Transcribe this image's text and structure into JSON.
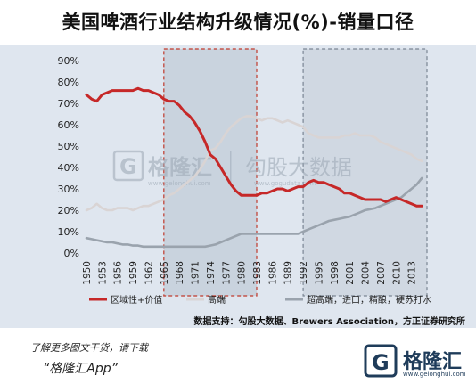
{
  "title": "美国啤酒行业结构升级情况(%)-销量口径",
  "source": "数据支持：勾股大数据、Brewers Association，方正证券研究所",
  "watermark": {
    "brand": "格隆汇",
    "brand_url": "www.gelonghui.com",
    "site": "勾股大数据",
    "site_url": "www.gogudata.com"
  },
  "promo": {
    "line1": "了解更多图文干货，请下载",
    "line2": "“格隆汇App”"
  },
  "brand": {
    "name": "格隆汇",
    "url": "www.gelonghui.com"
  },
  "chart_data": {
    "type": "line",
    "title": "美国啤酒行业结构升级情况(%)-销量口径",
    "ylim": [
      0,
      90
    ],
    "yticks": [
      "0%",
      "10%",
      "20%",
      "30%",
      "40%",
      "50%",
      "60%",
      "70%",
      "80%",
      "90%"
    ],
    "xlim": [
      1950,
      2016
    ],
    "xticks": [
      "1950",
      "1953",
      "1956",
      "1959",
      "1962",
      "1965",
      "1968",
      "1971",
      "1974",
      "1977",
      "1980",
      "1983",
      "1986",
      "1989",
      "1992",
      "1995",
      "1998",
      "2001",
      "2004",
      "2007",
      "2010",
      "2013"
    ],
    "legend_position": "bottom",
    "highlight_ranges": [
      [
        1965,
        1983
      ],
      [
        1992,
        2016
      ]
    ],
    "series": [
      {
        "name": "区域性+价值",
        "color": "#c62828",
        "x": [
          1950,
          1951,
          1952,
          1953,
          1954,
          1955,
          1956,
          1957,
          1958,
          1959,
          1960,
          1961,
          1962,
          1963,
          1964,
          1965,
          1966,
          1967,
          1968,
          1969,
          1970,
          1971,
          1972,
          1973,
          1974,
          1975,
          1976,
          1977,
          1978,
          1979,
          1980,
          1981,
          1982,
          1983,
          1984,
          1985,
          1986,
          1987,
          1988,
          1989,
          1990,
          1991,
          1992,
          1993,
          1994,
          1995,
          1996,
          1997,
          1998,
          1999,
          2000,
          2001,
          2002,
          2003,
          2004,
          2005,
          2006,
          2007,
          2008,
          2009,
          2010,
          2011,
          2012,
          2013,
          2014,
          2015
        ],
        "values": [
          74,
          72,
          71,
          74,
          75,
          76,
          76,
          76,
          76,
          76,
          77,
          76,
          76,
          75,
          74,
          72,
          71,
          71,
          69,
          66,
          64,
          61,
          57,
          52,
          46,
          44,
          40,
          36,
          32,
          29,
          27,
          27,
          27,
          27,
          28,
          28,
          29,
          30,
          30,
          29,
          30,
          31,
          31,
          33,
          34,
          33,
          33,
          32,
          31,
          30,
          28,
          28,
          27,
          26,
          25,
          25,
          25,
          25,
          24,
          25,
          26,
          25,
          24,
          23,
          22,
          22
        ]
      },
      {
        "name": "高端",
        "color": "#d9d4d4",
        "x": [
          1950,
          1951,
          1952,
          1953,
          1954,
          1955,
          1956,
          1957,
          1958,
          1959,
          1960,
          1961,
          1962,
          1963,
          1964,
          1965,
          1966,
          1967,
          1968,
          1969,
          1970,
          1971,
          1972,
          1973,
          1974,
          1975,
          1976,
          1977,
          1978,
          1979,
          1980,
          1981,
          1982,
          1983,
          1984,
          1985,
          1986,
          1987,
          1988,
          1989,
          1990,
          1991,
          1992,
          1993,
          1994,
          1995,
          1996,
          1997,
          1998,
          1999,
          2000,
          2001,
          2002,
          2003,
          2004,
          2005,
          2006,
          2007,
          2008,
          2009,
          2010,
          2011,
          2012,
          2013,
          2014,
          2015
        ],
        "values": [
          20,
          21,
          23,
          21,
          20,
          20,
          21,
          21,
          21,
          20,
          21,
          22,
          22,
          23,
          24,
          25,
          27,
          28,
          30,
          32,
          34,
          36,
          39,
          43,
          48,
          49,
          52,
          56,
          59,
          61,
          63,
          64,
          64,
          63,
          62,
          63,
          63,
          62,
          61,
          62,
          61,
          60,
          59,
          56,
          55,
          54,
          54,
          54,
          54,
          54,
          55,
          55,
          56,
          55,
          55,
          55,
          54,
          52,
          51,
          50,
          49,
          48,
          47,
          46,
          44,
          43
        ]
      },
      {
        "name": "超高端，进口，精酿，硬苏打水",
        "color": "#9aa3ad",
        "x": [
          1950,
          1951,
          1952,
          1953,
          1954,
          1955,
          1956,
          1957,
          1958,
          1959,
          1960,
          1961,
          1962,
          1963,
          1964,
          1965,
          1966,
          1967,
          1968,
          1969,
          1970,
          1971,
          1972,
          1973,
          1974,
          1975,
          1976,
          1977,
          1978,
          1979,
          1980,
          1981,
          1982,
          1983,
          1984,
          1985,
          1986,
          1987,
          1988,
          1989,
          1990,
          1991,
          1992,
          1993,
          1994,
          1995,
          1996,
          1997,
          1998,
          1999,
          2000,
          2001,
          2002,
          2003,
          2004,
          2005,
          2006,
          2007,
          2008,
          2009,
          2010,
          2011,
          2012,
          2013,
          2014,
          2015
        ],
        "values": [
          7,
          6.5,
          6,
          5.5,
          5,
          5,
          4.5,
          4,
          4,
          3.5,
          3.5,
          3,
          3,
          3,
          3,
          3,
          3,
          3,
          3,
          3,
          3,
          3,
          3,
          3,
          3.5,
          4,
          5,
          6,
          7,
          8,
          9,
          9,
          9,
          9,
          9,
          9,
          9,
          9,
          9,
          9,
          9,
          9,
          10,
          11,
          12,
          13,
          14,
          15,
          15.5,
          16,
          16.5,
          17,
          18,
          19,
          20,
          20.5,
          21,
          22,
          23,
          24,
          25,
          26,
          28,
          30,
          32,
          35
        ]
      }
    ]
  }
}
